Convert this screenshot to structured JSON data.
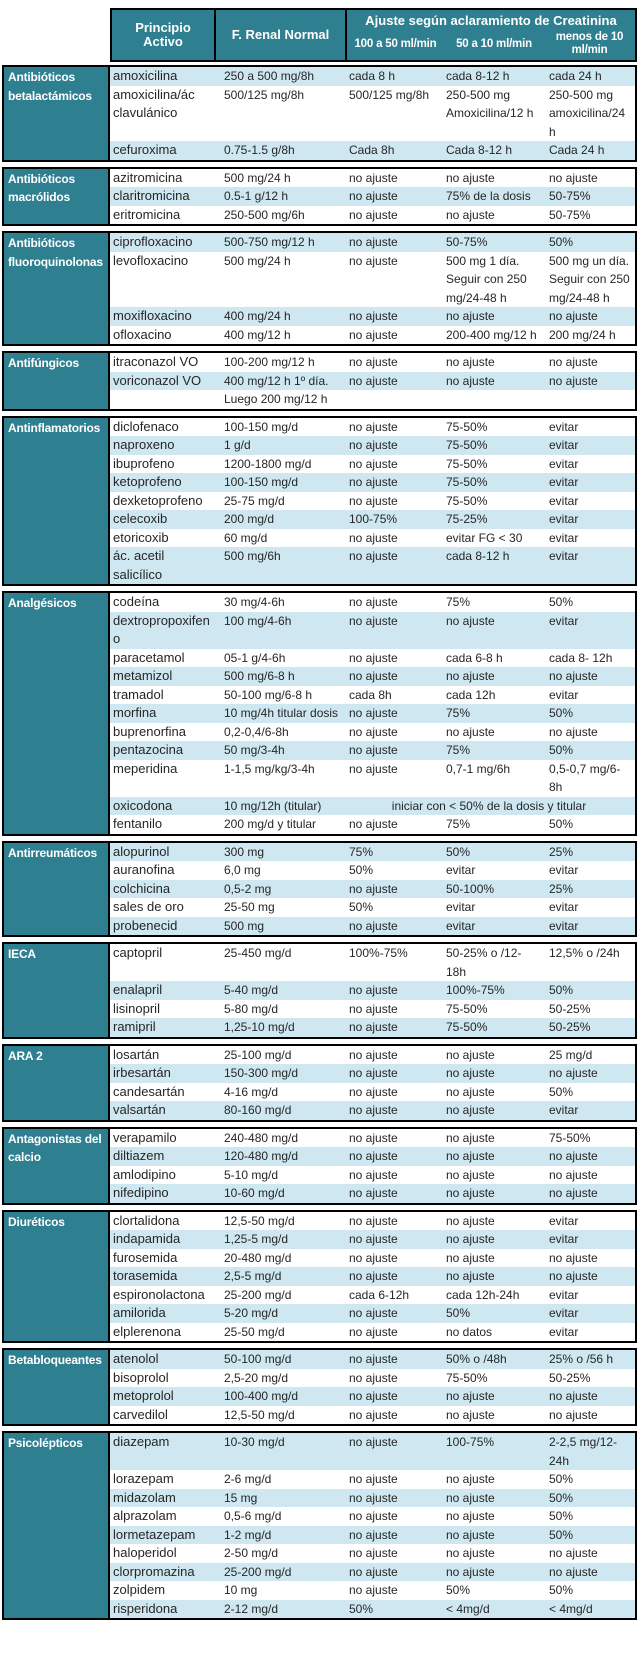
{
  "header": {
    "col_principio": "Principio Activo",
    "col_renal": "F. Renal Normal",
    "ajuste_title": "Ajuste según aclaramiento de Creatinina",
    "sub_cols": [
      "100 a 50 ml/min",
      "50 a 10 ml/min",
      "menos de 10 ml/min"
    ]
  },
  "colors": {
    "teal": "#2e7f8f",
    "stripe": "#cee7f0",
    "border": "#000000",
    "text": "#262626"
  },
  "groups": [
    {
      "category": "Antibióticos betalactámicos",
      "rows": [
        {
          "drug": "amoxicilina",
          "renal": "250 a 500 mg/8h",
          "c1": "cada 8 h",
          "c2": "cada 8-12 h",
          "c3": "cada 24 h",
          "bg": "blue"
        },
        {
          "drug": "amoxicilina/ác clavulánico",
          "renal": "500/125 mg/8h",
          "c1": "500/125 mg/8h",
          "c2": "250-500 mg Amoxicilina/12 h",
          "c3": "250-500 mg amoxicilina/24 h",
          "bg": "white"
        },
        {
          "drug": "cefuroxima",
          "renal": "0.75-1.5 g/8h",
          "c1": "Cada 8h",
          "c2": "Cada 8-12 h",
          "c3": "Cada 24 h",
          "bg": "blue"
        }
      ]
    },
    {
      "category": "Antibióticos macrólidos",
      "rows": [
        {
          "drug": "azitromicina",
          "renal": "500 mg/24 h",
          "c1": "no ajuste",
          "c2": "no ajuste",
          "c3": "no ajuste",
          "bg": "white"
        },
        {
          "drug": "claritromicina",
          "renal": "0.5-1 g/12 h",
          "c1": "no ajuste",
          "c2": "75% de la dosis",
          "c3": "50-75%",
          "bg": "blue"
        },
        {
          "drug": "eritromicina",
          "renal": "250-500 mg/6h",
          "c1": "no ajuste",
          "c2": "no ajuste",
          "c3": "50-75%",
          "bg": "white"
        }
      ]
    },
    {
      "category": "Antibióticos fluoroquinolonas",
      "rows": [
        {
          "drug": "ciprofloxacino",
          "renal": "500-750 mg/12 h",
          "c1": "no ajuste",
          "c2": "50-75%",
          "c3": "50%",
          "bg": "blue"
        },
        {
          "drug": "levofloxacino",
          "renal": "500 mg/24 h",
          "c1": "no ajuste",
          "c2": "500 mg 1 día. Seguir con 250 mg/24-48 h",
          "c3": "500 mg un día. Seguir con 250 mg/24-48 h",
          "bg": "white"
        },
        {
          "drug": "moxifloxacino",
          "renal": "400 mg/24 h",
          "c1": "no ajuste",
          "c2": "no ajuste",
          "c3": "no ajuste",
          "bg": "blue"
        },
        {
          "drug": "ofloxacino",
          "renal": "400 mg/12 h",
          "c1": "no ajuste",
          "c2": "200-400 mg/12 h",
          "c3": "200 mg/24 h",
          "bg": "white"
        }
      ]
    },
    {
      "category": "Antifúngicos",
      "rows": [
        {
          "drug": "itraconazol VO",
          "renal": "100-200 mg/12 h",
          "c1": "no ajuste",
          "c2": "no ajuste",
          "c3": "no ajuste",
          "bg": "white"
        },
        {
          "drug": "voriconazol VO",
          "renal": "400 mg/12 h 1º día.",
          "c1": "no ajuste",
          "c2": "no ajuste",
          "c3": "no ajuste",
          "bg": "blue"
        },
        {
          "drug": "",
          "renal": "Luego 200 mg/12 h",
          "c1": "",
          "c2": "",
          "c3": "",
          "bg": "white"
        }
      ]
    },
    {
      "category": "Antinflamatorios",
      "rows": [
        {
          "drug": "diclofenaco",
          "renal": "100-150 mg/d",
          "c1": "no ajuste",
          "c2": "75-50%",
          "c3": "evitar",
          "bg": "white"
        },
        {
          "drug": "naproxeno",
          "renal": "1 g/d",
          "c1": "no ajuste",
          "c2": "75-50%",
          "c3": "evitar",
          "bg": "blue"
        },
        {
          "drug": "ibuprofeno",
          "renal": "1200-1800 mg/d",
          "c1": "no ajuste",
          "c2": "75-50%",
          "c3": "evitar",
          "bg": "white"
        },
        {
          "drug": "ketoprofeno",
          "renal": "100-150 mg/d",
          "c1": "no ajuste",
          "c2": "75-50%",
          "c3": "evitar",
          "bg": "blue"
        },
        {
          "drug": "dexketoprofeno",
          "renal": "25-75 mg/d",
          "c1": "no ajuste",
          "c2": "75-50%",
          "c3": "evitar",
          "bg": "white"
        },
        {
          "drug": "celecoxib",
          "renal": "200 mg/d",
          "c1": "100-75%",
          "c2": "75-25%",
          "c3": "evitar",
          "bg": "blue"
        },
        {
          "drug": "etoricoxib",
          "renal": "60 mg/d",
          "c1": "no ajuste",
          "c2": "evitar FG < 30",
          "c3": "evitar",
          "bg": "white"
        },
        {
          "drug": "ác. acetil salicílico",
          "renal": "500 mg/6h",
          "c1": "no ajuste",
          "c2": "cada 8-12 h",
          "c3": "evitar",
          "bg": "blue"
        }
      ]
    },
    {
      "category": "Analgésicos",
      "rows": [
        {
          "drug": "codeína",
          "renal": "30 mg/4-6h",
          "c1": "no ajuste",
          "c2": "75%",
          "c3": "50%",
          "bg": "white"
        },
        {
          "drug": "dextropropoxifeno",
          "renal": "100 mg/4-6h",
          "c1": "no ajuste",
          "c2": "no ajuste",
          "c3": "evitar",
          "bg": "blue"
        },
        {
          "drug": "paracetamol",
          "renal": "05-1 g/4-6h",
          "c1": "no ajuste",
          "c2": "cada 6-8 h",
          "c3": "cada 8- 12h",
          "bg": "white"
        },
        {
          "drug": "metamizol",
          "renal": "500 mg/6-8 h",
          "c1": "no ajuste",
          "c2": "no ajuste",
          "c3": "no ajuste",
          "bg": "blue"
        },
        {
          "drug": "tramadol",
          "renal": "50-100 mg/6-8 h",
          "c1": "cada 8h",
          "c2": "cada 12h",
          "c3": "evitar",
          "bg": "white"
        },
        {
          "drug": "morfina",
          "renal": "10 mg/4h titular dosis",
          "c1": "no ajuste",
          "c2": "75%",
          "c3": "50%",
          "bg": "blue"
        },
        {
          "drug": "buprenorfina",
          "renal": "0,2-0,4/6-8h",
          "c1": "no ajuste",
          "c2": "no ajuste",
          "c3": "no ajuste",
          "bg": "white"
        },
        {
          "drug": "pentazocina",
          "renal": "50 mg/3-4h",
          "c1": "no ajuste",
          "c2": "75%",
          "c3": "50%",
          "bg": "blue"
        },
        {
          "drug": "meperidina",
          "renal": "1-1,5 mg/kg/3-4h",
          "c1": "no ajuste",
          "c2": "0,7-1 mg/6h",
          "c3": "0,5-0,7 mg/6-8h",
          "bg": "white"
        },
        {
          "drug": "oxicodona",
          "renal": "10 mg/12h (titular)",
          "merged": "iniciar con < 50% de la dosis y titular",
          "bg": "blue"
        },
        {
          "drug": "fentanilo",
          "renal": "200 mg/d y titular",
          "c1": "no ajuste",
          "c2": "75%",
          "c3": "50%",
          "bg": "white"
        }
      ]
    },
    {
      "category": "Antirreumáticos",
      "rows": [
        {
          "drug": "alopurinol",
          "renal": "300 mg",
          "c1": "75%",
          "c2": "50%",
          "c3": "25%",
          "bg": "blue"
        },
        {
          "drug": "auranofina",
          "renal": "6,0 mg",
          "c1": "50%",
          "c2": "evitar",
          "c3": "evitar",
          "bg": "white"
        },
        {
          "drug": "colchicina",
          "renal": "0,5-2 mg",
          "c1": "no ajuste",
          "c2": "50-100%",
          "c3": "25%",
          "bg": "blue"
        },
        {
          "drug": "sales de oro",
          "renal": "25-50 mg",
          "c1": "50%",
          "c2": "evitar",
          "c3": "evitar",
          "bg": "white"
        },
        {
          "drug": "probenecid",
          "renal": "500 mg",
          "c1": "no ajuste",
          "c2": "evitar",
          "c3": "evitar",
          "bg": "blue"
        }
      ]
    },
    {
      "category": "IECA",
      "rows": [
        {
          "drug": "captopril",
          "renal": "25-450 mg/d",
          "c1": "100%-75%",
          "c2": "50-25% o /12-18h",
          "c3": "12,5% o /24h",
          "bg": "white"
        },
        {
          "drug": "enalapril",
          "renal": "5-40 mg/d",
          "c1": "no ajuste",
          "c2": "100%-75%",
          "c3": "50%",
          "bg": "blue"
        },
        {
          "drug": "lisinopril",
          "renal": "5-80 mg/d",
          "c1": "no ajuste",
          "c2": "75-50%",
          "c3": "50-25%",
          "bg": "white"
        },
        {
          "drug": "ramipril",
          "renal": "1,25-10 mg/d",
          "c1": "no ajuste",
          "c2": "75-50%",
          "c3": "50-25%",
          "bg": "blue"
        }
      ]
    },
    {
      "category": "ARA 2",
      "rows": [
        {
          "drug": "losartán",
          "renal": "25-100 mg/d",
          "c1": "no ajuste",
          "c2": "no ajuste",
          "c3": "25 mg/d",
          "bg": "white"
        },
        {
          "drug": "irbesartán",
          "renal": "150-300 mg/d",
          "c1": "no ajuste",
          "c2": "no ajuste",
          "c3": "no ajuste",
          "bg": "blue"
        },
        {
          "drug": "candesartán",
          "renal": "4-16 mg/d",
          "c1": "no ajuste",
          "c2": "no ajuste",
          "c3": "50%",
          "bg": "white"
        },
        {
          "drug": "valsartán",
          "renal": "80-160 mg/d",
          "c1": "no ajuste",
          "c2": "no ajuste",
          "c3": "evitar",
          "bg": "blue"
        }
      ]
    },
    {
      "category": "Antagonistas del calcio",
      "rows": [
        {
          "drug": "verapamilo",
          "renal": "240-480 mg/d",
          "c1": "no ajuste",
          "c2": "no ajuste",
          "c3": "75-50%",
          "bg": "white"
        },
        {
          "drug": "diltiazem",
          "renal": "120-480 mg/d",
          "c1": "no ajuste",
          "c2": "no ajuste",
          "c3": "no ajuste",
          "bg": "blue"
        },
        {
          "drug": "amlodipino",
          "renal": "5-10 mg/d",
          "c1": "no ajuste",
          "c2": "no ajuste",
          "c3": "no ajuste",
          "bg": "white"
        },
        {
          "drug": "nifedipino",
          "renal": "10-60 mg/d",
          "c1": "no ajuste",
          "c2": "no ajuste",
          "c3": "no ajuste",
          "bg": "blue"
        }
      ]
    },
    {
      "category": "Diuréticos",
      "rows": [
        {
          "drug": "clortalidona",
          "renal": "12,5-50 mg/d",
          "c1": "no ajuste",
          "c2": "no ajuste",
          "c3": "evitar",
          "bg": "white"
        },
        {
          "drug": "indapamida",
          "renal": "1,25-5 mg/d",
          "c1": "no ajuste",
          "c2": "no ajuste",
          "c3": "evitar",
          "bg": "blue"
        },
        {
          "drug": "furosemida",
          "renal": "20-480 mg/d",
          "c1": "no ajuste",
          "c2": "no ajuste",
          "c3": "no ajuste",
          "bg": "white"
        },
        {
          "drug": "torasemida",
          "renal": "2,5-5 mg/d",
          "c1": "no ajuste",
          "c2": "no ajuste",
          "c3": "no ajuste",
          "bg": "blue"
        },
        {
          "drug": "espironolactona",
          "renal": "25-200 mg/d",
          "c1": "cada 6-12h",
          "c2": "cada 12h-24h",
          "c3": "evitar",
          "bg": "white"
        },
        {
          "drug": "amilorida",
          "renal": "5-20 mg/d",
          "c1": "no ajuste",
          "c2": "50%",
          "c3": "evitar",
          "bg": "blue"
        },
        {
          "drug": "elplerenona",
          "renal": "25-50 mg/d",
          "c1": "no ajuste",
          "c2": "no datos",
          "c3": "evitar",
          "bg": "white"
        }
      ]
    },
    {
      "category": "Betabloqueantes",
      "rows": [
        {
          "drug": "atenolol",
          "renal": "50-100 mg/d",
          "c1": "no ajuste",
          "c2": "50% o /48h",
          "c3": "25% o /56 h",
          "bg": "blue"
        },
        {
          "drug": "bisoprolol",
          "renal": "2,5-20 mg/d",
          "c1": "no ajuste",
          "c2": "75-50%",
          "c3": "50-25%",
          "bg": "white"
        },
        {
          "drug": "metoprolol",
          "renal": "100-400 mg/d",
          "c1": "no ajuste",
          "c2": "no ajuste",
          "c3": "no ajuste",
          "bg": "blue"
        },
        {
          "drug": "carvedilol",
          "renal": "12,5-50 mg/d",
          "c1": "no ajuste",
          "c2": "no ajuste",
          "c3": "no ajuste",
          "bg": "white"
        }
      ]
    },
    {
      "category": "Psicolépticos",
      "rows": [
        {
          "drug": "diazepam",
          "renal": "10-30 mg/d",
          "c1": "no ajuste",
          "c2": "100-75%",
          "c3": "2-2,5 mg/12-24h",
          "bg": "blue"
        },
        {
          "drug": "lorazepam",
          "renal": "2-6 mg/d",
          "c1": "no ajuste",
          "c2": "no ajuste",
          "c3": "50%",
          "bg": "white"
        },
        {
          "drug": "midazolam",
          "renal": "15 mg",
          "c1": "no ajuste",
          "c2": "no ajuste",
          "c3": "50%",
          "bg": "blue"
        },
        {
          "drug": "alprazolam",
          "renal": "0,5-6 mg/d",
          "c1": "no ajuste",
          "c2": "no ajuste",
          "c3": "50%",
          "bg": "white"
        },
        {
          "drug": "lormetazepam",
          "renal": "1-2 mg/d",
          "c1": "no ajuste",
          "c2": "no ajuste",
          "c3": "50%",
          "bg": "blue"
        },
        {
          "drug": "haloperidol",
          "renal": "2-50 mg/d",
          "c1": "no ajuste",
          "c2": "no ajuste",
          "c3": "no ajuste",
          "bg": "white"
        },
        {
          "drug": "clorpromazina",
          "renal": "25-200 mg/d",
          "c1": "no ajuste",
          "c2": "no ajuste",
          "c3": "no ajuste",
          "bg": "blue"
        },
        {
          "drug": "zolpidem",
          "renal": "10 mg",
          "c1": "no ajuste",
          "c2": "50%",
          "c3": "50%",
          "bg": "white"
        },
        {
          "drug": "risperidona",
          "renal": "2-12 mg/d",
          "c1": "50%",
          "c2": "< 4mg/d",
          "c3": "< 4mg/d",
          "bg": "blue"
        }
      ]
    }
  ]
}
